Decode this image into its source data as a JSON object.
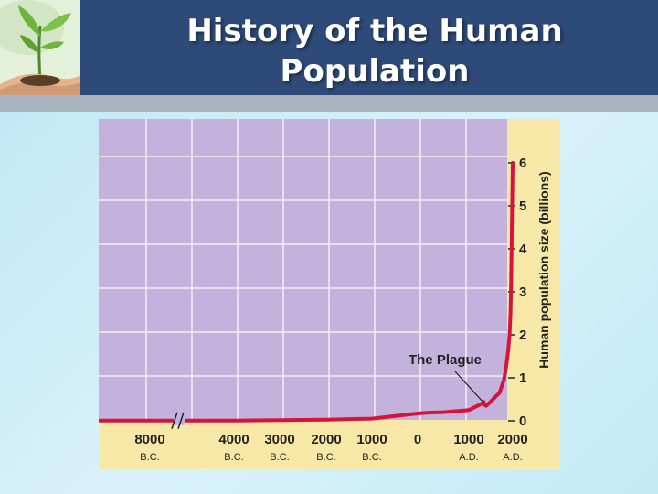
{
  "slide": {
    "title_line1": "History of the Human",
    "title_line2": "Population"
  },
  "logo": {
    "icon": "seedling-in-hands-icon"
  },
  "colors": {
    "header": "#2e4a78",
    "plot_bg": "#c3b2db",
    "axis_bg": "#f8e8a8",
    "line": "#d4143a"
  },
  "chart_data": {
    "type": "line",
    "title": "",
    "xlabel": "",
    "ylabel": "Human population size (billions)",
    "ylim": [
      0,
      6
    ],
    "yticks": [
      0,
      1,
      2,
      3,
      4,
      5,
      6
    ],
    "y_axis_side": "right",
    "x_axis_break": "between 8000 B.C. and 4000 B.C.",
    "xticks": [
      {
        "year": -8000,
        "label": "8000",
        "era": "B.C."
      },
      {
        "year": -4000,
        "label": "4000",
        "era": "B.C."
      },
      {
        "year": -3000,
        "label": "3000",
        "era": "B.C."
      },
      {
        "year": -2000,
        "label": "2000",
        "era": "B.C."
      },
      {
        "year": -1000,
        "label": "1000",
        "era": "B.C."
      },
      {
        "year": 0,
        "label": "0",
        "era": ""
      },
      {
        "year": 1000,
        "label": "1000",
        "era": "A.D."
      },
      {
        "year": 2000,
        "label": "2000",
        "era": "A.D."
      }
    ],
    "grid": true,
    "series": [
      {
        "values": [
          [
            -8000,
            0.005
          ],
          [
            -4000,
            0.007
          ],
          [
            -3000,
            0.014
          ],
          [
            -2000,
            0.027
          ],
          [
            -1000,
            0.05
          ],
          [
            0,
            0.17
          ],
          [
            200,
            0.19
          ],
          [
            500,
            0.2
          ],
          [
            1000,
            0.25
          ],
          [
            1300,
            0.4
          ],
          [
            1340,
            0.44
          ],
          [
            1350,
            0.37
          ],
          [
            1400,
            0.35
          ],
          [
            1500,
            0.45
          ],
          [
            1600,
            0.55
          ],
          [
            1700,
            0.65
          ],
          [
            1800,
            0.95
          ],
          [
            1850,
            1.25
          ],
          [
            1900,
            1.65
          ],
          [
            1930,
            2.0
          ],
          [
            1950,
            2.5
          ],
          [
            1960,
            3.0
          ],
          [
            1975,
            4.0
          ],
          [
            1987,
            5.0
          ],
          [
            2000,
            6.0
          ]
        ]
      }
    ],
    "annotations": [
      {
        "text": "The Plague",
        "x": 1350,
        "y": 0.37
      }
    ]
  }
}
